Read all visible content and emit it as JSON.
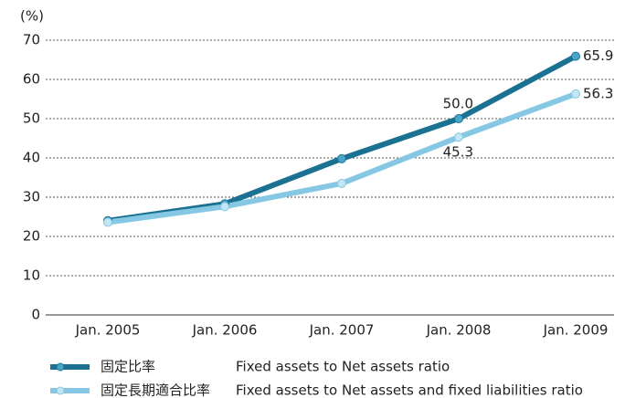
{
  "chart_data": {
    "type": "line",
    "y_unit": "(%)",
    "categories": [
      "Jan. 2005",
      "Jan. 2006",
      "Jan. 2007",
      "Jan. 2008",
      "Jan. 2009"
    ],
    "series": [
      {
        "name": "固定比率",
        "description": "Fixed assets to Net assets ratio",
        "color": "#1a7191",
        "values": [
          24.0,
          28.3,
          39.8,
          50.0,
          65.9
        ],
        "value_labels": [
          null,
          null,
          null,
          "50.0",
          "65.9"
        ]
      },
      {
        "name": "固定長期適合比率",
        "description": "Fixed assets to Net assets and fixed liabilities ratio",
        "color": "#86c8e3",
        "values": [
          23.6,
          27.6,
          33.5,
          45.3,
          56.3
        ],
        "value_labels": [
          null,
          null,
          null,
          "45.3",
          "56.3"
        ]
      }
    ],
    "ylim": [
      0,
      70
    ],
    "yticks": [
      0,
      10,
      20,
      30,
      40,
      50,
      60,
      70
    ],
    "grid": true
  }
}
